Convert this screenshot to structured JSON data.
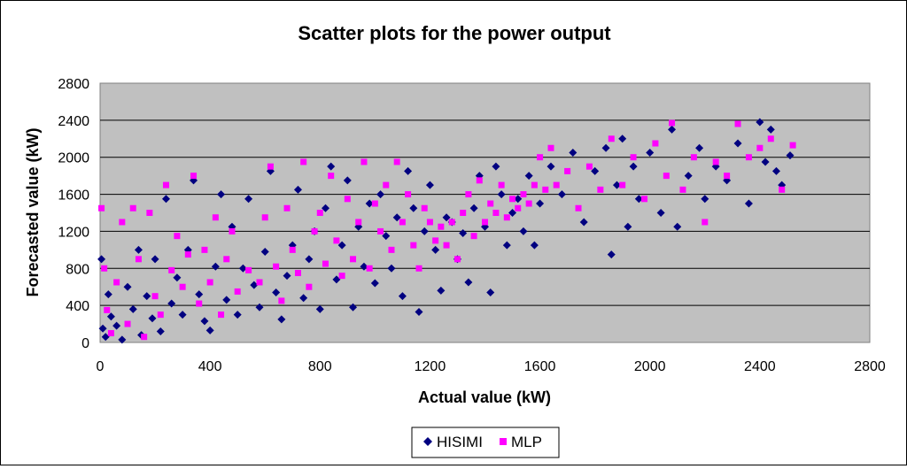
{
  "chart_data": {
    "type": "scatter",
    "title": "Scatter plots for the power output",
    "xlabel": "Actual value (kW)",
    "ylabel": "Forecasted value (kW)",
    "xlim": [
      0,
      2800
    ],
    "ylim": [
      0,
      2800
    ],
    "xticks": [
      "0",
      "400",
      "800",
      "1200",
      "1600",
      "2000",
      "2400",
      "2800"
    ],
    "yticks": [
      "0",
      "400",
      "800",
      "1200",
      "1600",
      "2000",
      "2400",
      "2800"
    ],
    "grid": "horizontal",
    "plot_background": "#c0c0c0",
    "legend_position": "bottom",
    "series": [
      {
        "name": "HISIMI",
        "marker": "diamond",
        "color": "#000080",
        "points": [
          [
            5,
            900
          ],
          [
            10,
            150
          ],
          [
            20,
            60
          ],
          [
            30,
            520
          ],
          [
            40,
            280
          ],
          [
            60,
            180
          ],
          [
            80,
            30
          ],
          [
            100,
            600
          ],
          [
            120,
            360
          ],
          [
            140,
            1000
          ],
          [
            150,
            80
          ],
          [
            170,
            500
          ],
          [
            190,
            260
          ],
          [
            200,
            900
          ],
          [
            220,
            120
          ],
          [
            240,
            1550
          ],
          [
            260,
            420
          ],
          [
            280,
            700
          ],
          [
            300,
            300
          ],
          [
            320,
            1000
          ],
          [
            340,
            1750
          ],
          [
            360,
            520
          ],
          [
            380,
            230
          ],
          [
            400,
            130
          ],
          [
            420,
            820
          ],
          [
            440,
            1600
          ],
          [
            460,
            460
          ],
          [
            480,
            1250
          ],
          [
            500,
            300
          ],
          [
            520,
            800
          ],
          [
            540,
            1550
          ],
          [
            560,
            620
          ],
          [
            580,
            380
          ],
          [
            600,
            980
          ],
          [
            620,
            1850
          ],
          [
            640,
            540
          ],
          [
            660,
            250
          ],
          [
            680,
            720
          ],
          [
            700,
            1050
          ],
          [
            720,
            1650
          ],
          [
            740,
            480
          ],
          [
            760,
            900
          ],
          [
            780,
            1200
          ],
          [
            800,
            360
          ],
          [
            820,
            1450
          ],
          [
            840,
            1900
          ],
          [
            860,
            680
          ],
          [
            880,
            1050
          ],
          [
            900,
            1750
          ],
          [
            920,
            380
          ],
          [
            940,
            1250
          ],
          [
            960,
            820
          ],
          [
            980,
            1500
          ],
          [
            1000,
            640
          ],
          [
            1020,
            1600
          ],
          [
            1040,
            1150
          ],
          [
            1060,
            800
          ],
          [
            1080,
            1350
          ],
          [
            1100,
            500
          ],
          [
            1120,
            1850
          ],
          [
            1140,
            1450
          ],
          [
            1160,
            330
          ],
          [
            1180,
            1200
          ],
          [
            1200,
            1700
          ],
          [
            1220,
            1000
          ],
          [
            1240,
            560
          ],
          [
            1260,
            1350
          ],
          [
            1280,
            1300
          ],
          [
            1300,
            900
          ],
          [
            1320,
            1180
          ],
          [
            1340,
            650
          ],
          [
            1360,
            1450
          ],
          [
            1380,
            1800
          ],
          [
            1400,
            1250
          ],
          [
            1420,
            540
          ],
          [
            1440,
            1900
          ],
          [
            1460,
            1600
          ],
          [
            1480,
            1050
          ],
          [
            1500,
            1400
          ],
          [
            1520,
            1550
          ],
          [
            1540,
            1200
          ],
          [
            1560,
            1800
          ],
          [
            1580,
            1050
          ],
          [
            1600,
            1500
          ],
          [
            1640,
            1900
          ],
          [
            1680,
            1600
          ],
          [
            1720,
            2050
          ],
          [
            1760,
            1300
          ],
          [
            1800,
            1850
          ],
          [
            1840,
            2100
          ],
          [
            1860,
            950
          ],
          [
            1880,
            1700
          ],
          [
            1900,
            2200
          ],
          [
            1920,
            1250
          ],
          [
            1940,
            1900
          ],
          [
            1960,
            1550
          ],
          [
            2000,
            2050
          ],
          [
            2040,
            1400
          ],
          [
            2080,
            2300
          ],
          [
            2100,
            1250
          ],
          [
            2140,
            1800
          ],
          [
            2180,
            2100
          ],
          [
            2200,
            1550
          ],
          [
            2240,
            1900
          ],
          [
            2280,
            1750
          ],
          [
            2320,
            2150
          ],
          [
            2360,
            1500
          ],
          [
            2400,
            2380
          ],
          [
            2420,
            1950
          ],
          [
            2440,
            2300
          ],
          [
            2460,
            1850
          ],
          [
            2480,
            1700
          ],
          [
            2510,
            2020
          ]
        ]
      },
      {
        "name": "MLP",
        "marker": "square",
        "color": "#ff00ff",
        "points": [
          [
            5,
            1450
          ],
          [
            15,
            800
          ],
          [
            25,
            350
          ],
          [
            40,
            100
          ],
          [
            60,
            650
          ],
          [
            80,
            1300
          ],
          [
            100,
            200
          ],
          [
            120,
            1450
          ],
          [
            140,
            900
          ],
          [
            160,
            60
          ],
          [
            180,
            1400
          ],
          [
            200,
            500
          ],
          [
            220,
            300
          ],
          [
            240,
            1700
          ],
          [
            260,
            780
          ],
          [
            280,
            1150
          ],
          [
            300,
            600
          ],
          [
            320,
            950
          ],
          [
            340,
            1800
          ],
          [
            360,
            420
          ],
          [
            380,
            1000
          ],
          [
            400,
            650
          ],
          [
            420,
            1350
          ],
          [
            440,
            300
          ],
          [
            460,
            900
          ],
          [
            480,
            1200
          ],
          [
            500,
            550
          ],
          [
            540,
            780
          ],
          [
            580,
            650
          ],
          [
            600,
            1350
          ],
          [
            620,
            1900
          ],
          [
            640,
            820
          ],
          [
            660,
            450
          ],
          [
            680,
            1450
          ],
          [
            700,
            1000
          ],
          [
            720,
            750
          ],
          [
            740,
            1950
          ],
          [
            760,
            600
          ],
          [
            780,
            1200
          ],
          [
            800,
            1400
          ],
          [
            820,
            850
          ],
          [
            840,
            1800
          ],
          [
            860,
            1100
          ],
          [
            880,
            720
          ],
          [
            900,
            1550
          ],
          [
            920,
            900
          ],
          [
            940,
            1300
          ],
          [
            960,
            1950
          ],
          [
            980,
            800
          ],
          [
            1000,
            1500
          ],
          [
            1020,
            1200
          ],
          [
            1040,
            1700
          ],
          [
            1060,
            1000
          ],
          [
            1080,
            1950
          ],
          [
            1100,
            1300
          ],
          [
            1120,
            1600
          ],
          [
            1140,
            1050
          ],
          [
            1160,
            800
          ],
          [
            1180,
            1450
          ],
          [
            1200,
            1300
          ],
          [
            1220,
            1100
          ],
          [
            1240,
            1250
          ],
          [
            1260,
            1050
          ],
          [
            1280,
            1300
          ],
          [
            1300,
            900
          ],
          [
            1320,
            1400
          ],
          [
            1340,
            1600
          ],
          [
            1360,
            1150
          ],
          [
            1380,
            1750
          ],
          [
            1400,
            1300
          ],
          [
            1420,
            1500
          ],
          [
            1440,
            1400
          ],
          [
            1460,
            1700
          ],
          [
            1480,
            1350
          ],
          [
            1500,
            1550
          ],
          [
            1520,
            1450
          ],
          [
            1540,
            1600
          ],
          [
            1560,
            1500
          ],
          [
            1580,
            1700
          ],
          [
            1600,
            2000
          ],
          [
            1620,
            1650
          ],
          [
            1640,
            2100
          ],
          [
            1660,
            1700
          ],
          [
            1700,
            1850
          ],
          [
            1740,
            1450
          ],
          [
            1780,
            1900
          ],
          [
            1820,
            1650
          ],
          [
            1860,
            2200
          ],
          [
            1900,
            1700
          ],
          [
            1940,
            2000
          ],
          [
            1980,
            1550
          ],
          [
            2020,
            2150
          ],
          [
            2060,
            1800
          ],
          [
            2080,
            2370
          ],
          [
            2120,
            1650
          ],
          [
            2160,
            2000
          ],
          [
            2200,
            1300
          ],
          [
            2240,
            1950
          ],
          [
            2280,
            1800
          ],
          [
            2320,
            2360
          ],
          [
            2360,
            2000
          ],
          [
            2400,
            2100
          ],
          [
            2440,
            2200
          ],
          [
            2480,
            1650
          ],
          [
            2520,
            2130
          ]
        ]
      }
    ]
  }
}
